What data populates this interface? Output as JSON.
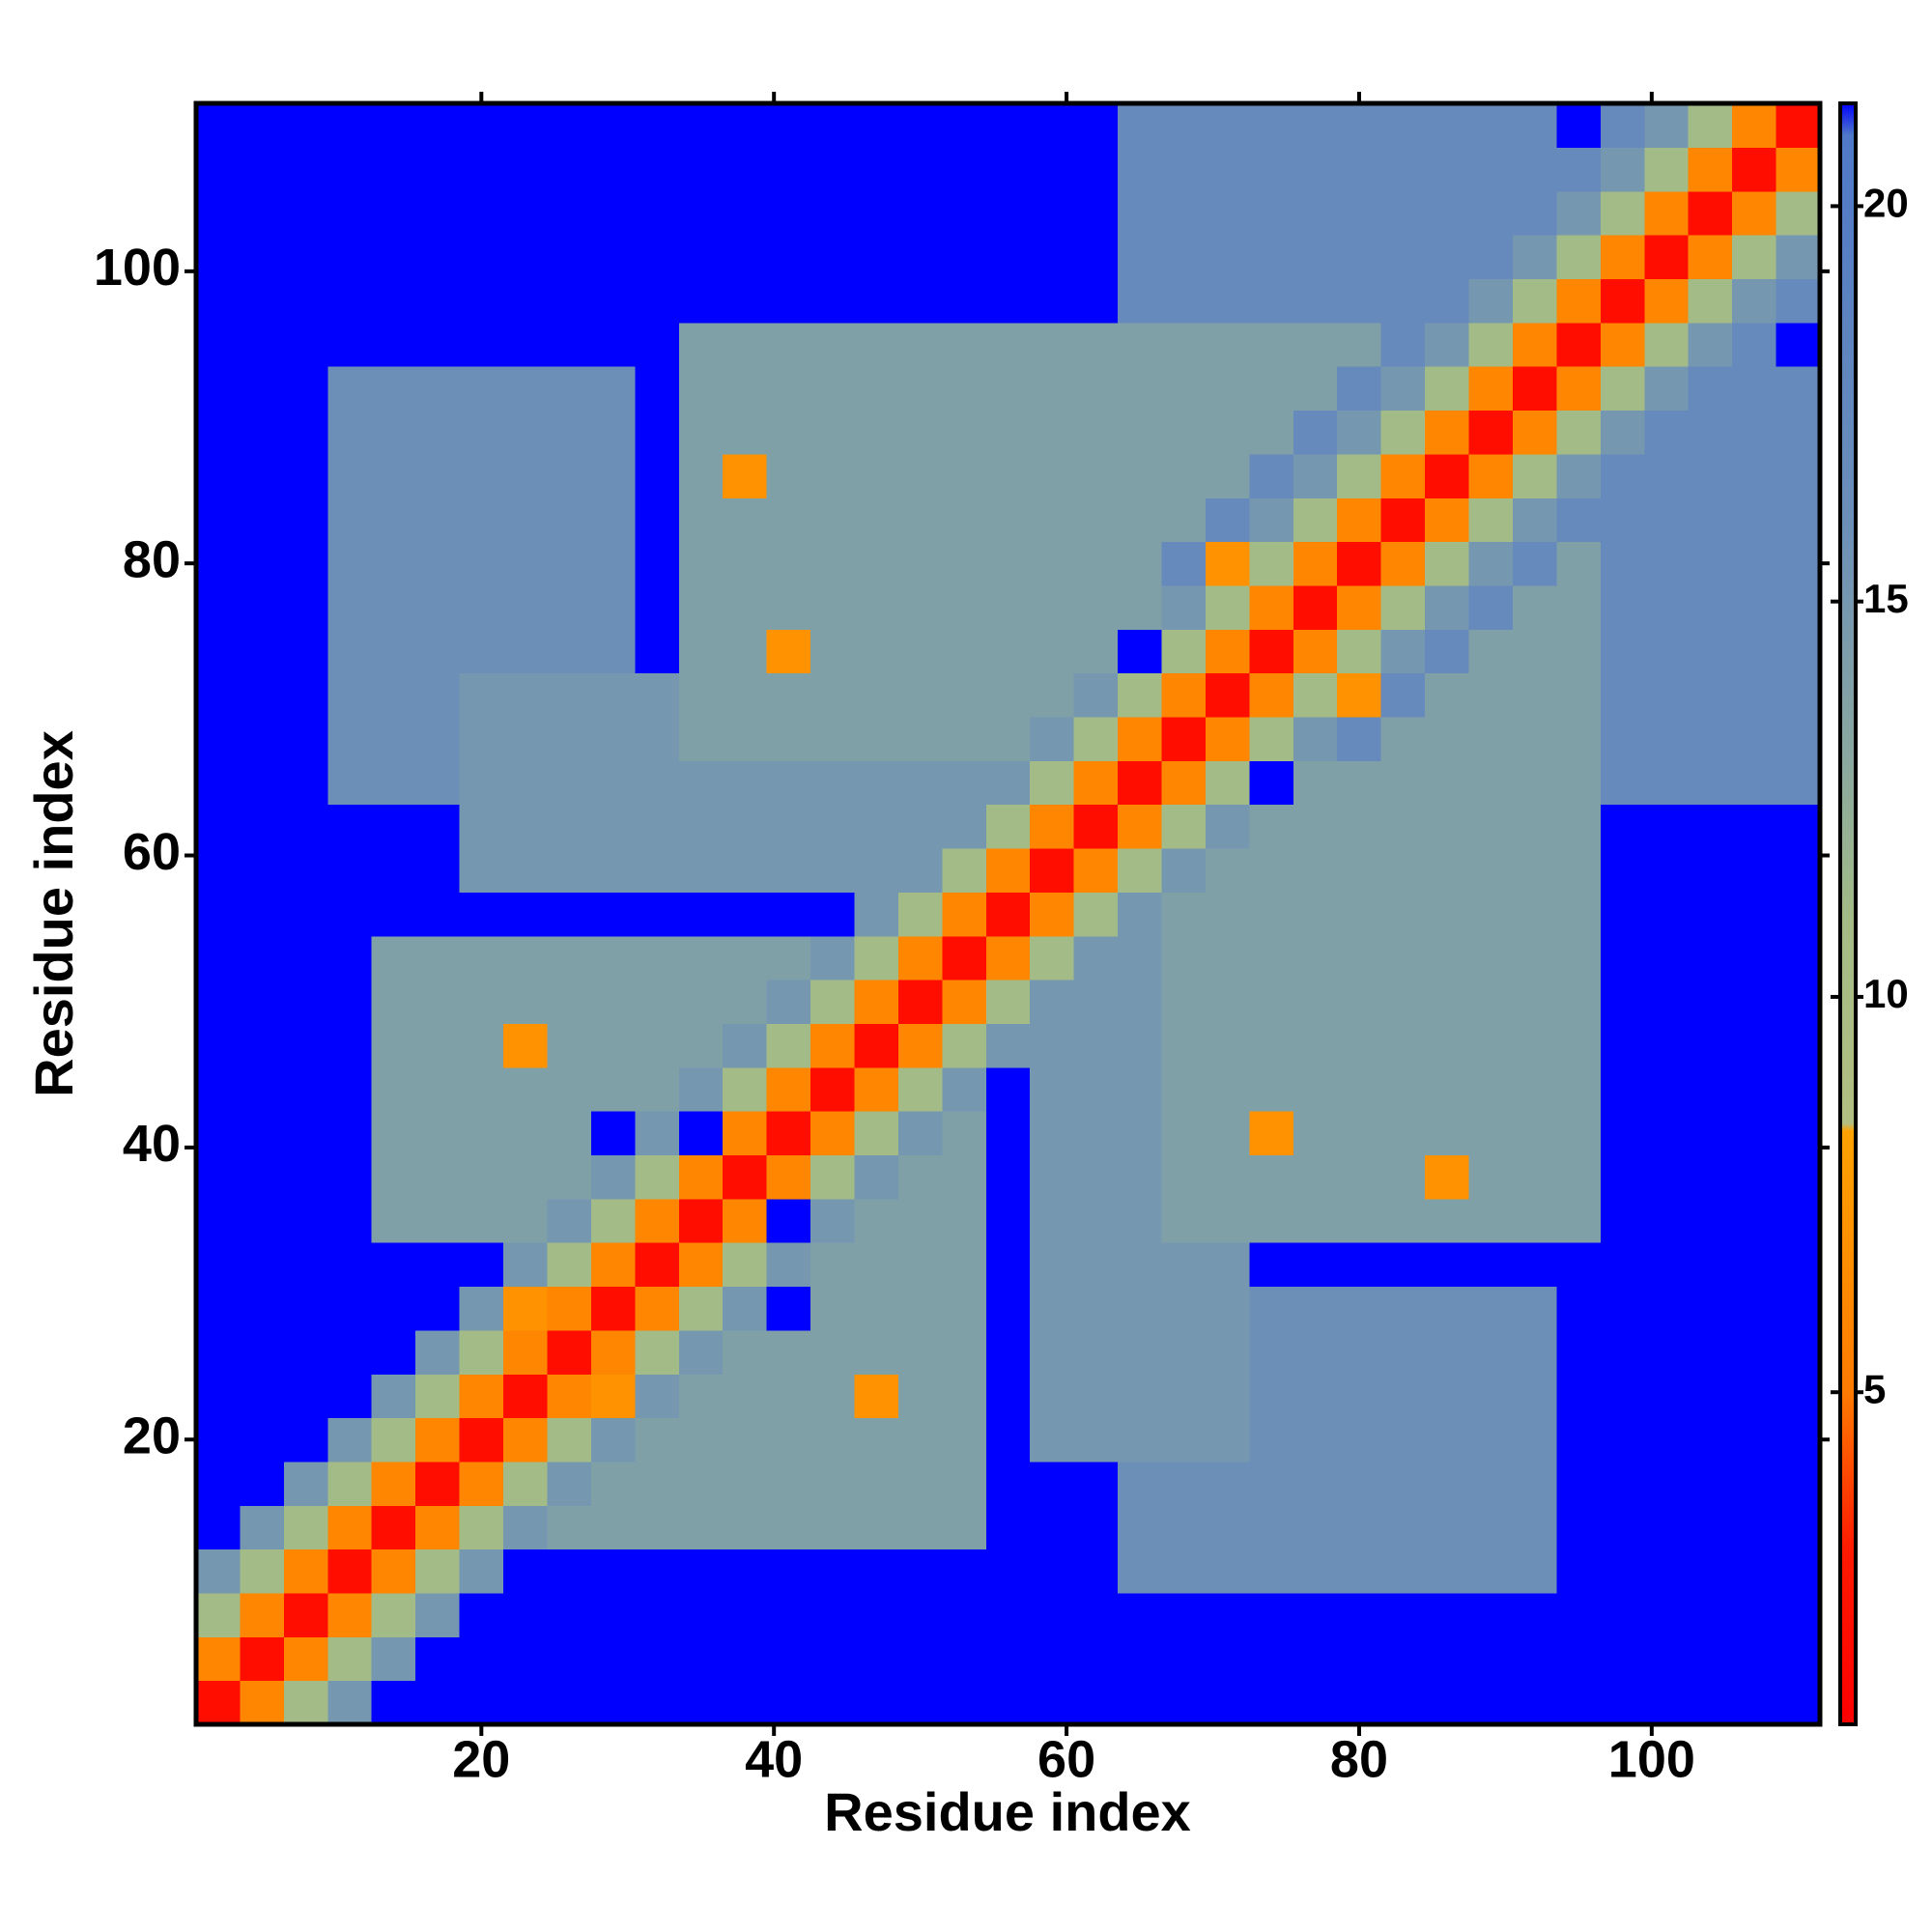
{
  "chart_data": {
    "type": "heatmap",
    "xlabel": "Residue index",
    "ylabel": "Residue index",
    "x": [
      2,
      5,
      8,
      11,
      14,
      17,
      20,
      23,
      26,
      29,
      32,
      35,
      38,
      41,
      44,
      47,
      50,
      53,
      56,
      59,
      62,
      65,
      68,
      71,
      74,
      77,
      80,
      83,
      86,
      89,
      92,
      95,
      98,
      101,
      104,
      107,
      110
    ],
    "y": [
      2,
      5,
      8,
      11,
      14,
      17,
      20,
      23,
      26,
      29,
      32,
      35,
      38,
      41,
      44,
      47,
      50,
      53,
      56,
      59,
      62,
      65,
      68,
      71,
      74,
      77,
      80,
      83,
      86,
      89,
      92,
      95,
      98,
      101,
      104,
      107,
      110
    ],
    "xlim": [
      0.5,
      111.5
    ],
    "ylim": [
      0.5,
      111.5
    ],
    "xticks": [
      20,
      40,
      60,
      80,
      100
    ],
    "yticks": [
      20,
      40,
      60,
      80,
      100
    ],
    "zlim": [
      0.8,
      21.3
    ],
    "zticks": [
      5,
      10,
      15,
      20
    ],
    "colorscale": [
      [
        0.8,
        "#ff0000"
      ],
      [
        3,
        "#ff1a00"
      ],
      [
        5,
        "#ff7a00"
      ],
      [
        8.3,
        "#ffa200"
      ],
      [
        8.4,
        "#b2bf82"
      ],
      [
        11,
        "#a3bb86"
      ],
      [
        13,
        "#8aa89f"
      ],
      [
        16,
        "#6c8fb8"
      ],
      [
        20.9,
        "#4f78c8"
      ],
      [
        21.3,
        "#0000ff"
      ]
    ],
    "z": [
      [
        2,
        6,
        11,
        15,
        22,
        22,
        22,
        22,
        22,
        22,
        22,
        22,
        22,
        22,
        22,
        22,
        22,
        22,
        22,
        22,
        22,
        22,
        22,
        22,
        22,
        22,
        22,
        22,
        22,
        22,
        22,
        22,
        22,
        22,
        22,
        22,
        22
      ],
      [
        6,
        2,
        6,
        11,
        15,
        22,
        22,
        22,
        22,
        22,
        22,
        22,
        22,
        22,
        22,
        22,
        22,
        22,
        22,
        22,
        22,
        22,
        22,
        22,
        22,
        22,
        22,
        22,
        22,
        22,
        22,
        22,
        22,
        22,
        22,
        22,
        22
      ],
      [
        11,
        6,
        2,
        6,
        11,
        15,
        22,
        22,
        22,
        22,
        22,
        22,
        22,
        22,
        22,
        22,
        22,
        22,
        22,
        22,
        22,
        22,
        22,
        22,
        22,
        22,
        22,
        22,
        22,
        22,
        22,
        22,
        22,
        22,
        22,
        22,
        22
      ],
      [
        15,
        11,
        6,
        2,
        6,
        11,
        15,
        22,
        22,
        22,
        22,
        22,
        22,
        22,
        22,
        22,
        22,
        22,
        22,
        22,
        22,
        16,
        16,
        16,
        16,
        16,
        16,
        16,
        16,
        16,
        16,
        22,
        22,
        22,
        22,
        22,
        22
      ],
      [
        22,
        15,
        11,
        6,
        2,
        6,
        11,
        15,
        14,
        14,
        14,
        14,
        14,
        14,
        14,
        14,
        14,
        14,
        22,
        22,
        22,
        16,
        16,
        16,
        16,
        16,
        16,
        16,
        16,
        16,
        16,
        22,
        22,
        22,
        22,
        22,
        22
      ],
      [
        22,
        22,
        15,
        11,
        6,
        2,
        6,
        11,
        15,
        14,
        14,
        14,
        14,
        14,
        14,
        14,
        14,
        14,
        22,
        22,
        22,
        16,
        16,
        16,
        16,
        16,
        16,
        16,
        16,
        16,
        16,
        22,
        22,
        22,
        22,
        22,
        22
      ],
      [
        22,
        22,
        22,
        15,
        11,
        6,
        2,
        6,
        11,
        15,
        14,
        14,
        14,
        14,
        14,
        14,
        14,
        14,
        22,
        15,
        15,
        15,
        15,
        15,
        16,
        16,
        16,
        16,
        16,
        16,
        16,
        22,
        22,
        22,
        22,
        22,
        22
      ],
      [
        22,
        22,
        22,
        22,
        15,
        11,
        6,
        2,
        6,
        7,
        15,
        14,
        14,
        14,
        14,
        7,
        14,
        14,
        22,
        15,
        15,
        15,
        15,
        15,
        16,
        16,
        16,
        16,
        16,
        16,
        16,
        22,
        22,
        22,
        22,
        22,
        22
      ],
      [
        22,
        22,
        22,
        22,
        22,
        15,
        11,
        6,
        2,
        6,
        11,
        15,
        14,
        14,
        14,
        14,
        14,
        14,
        22,
        15,
        15,
        15,
        15,
        15,
        16,
        16,
        16,
        16,
        16,
        16,
        16,
        22,
        22,
        22,
        22,
        22,
        22
      ],
      [
        22,
        22,
        22,
        22,
        22,
        22,
        15,
        7,
        6,
        2,
        6,
        11,
        15,
        22,
        14,
        14,
        14,
        14,
        22,
        15,
        15,
        15,
        15,
        15,
        16,
        16,
        16,
        16,
        16,
        16,
        16,
        22,
        22,
        22,
        22,
        22,
        22
      ],
      [
        22,
        22,
        22,
        22,
        22,
        22,
        22,
        15,
        11,
        6,
        2,
        6,
        11,
        15,
        14,
        14,
        14,
        14,
        22,
        15,
        15,
        15,
        15,
        15,
        22,
        22,
        22,
        22,
        22,
        22,
        22,
        22,
        22,
        22,
        22,
        22,
        22
      ],
      [
        22,
        22,
        22,
        22,
        14,
        14,
        14,
        14,
        15,
        11,
        6,
        2,
        6,
        22,
        15,
        14,
        14,
        14,
        22,
        15,
        15,
        15,
        14,
        14,
        14,
        14,
        14,
        14,
        14,
        14,
        14,
        14,
        22,
        22,
        22,
        22,
        22
      ],
      [
        22,
        22,
        22,
        22,
        14,
        14,
        14,
        14,
        14,
        15,
        11,
        6,
        2,
        6,
        11,
        15,
        14,
        14,
        22,
        15,
        15,
        15,
        14,
        14,
        14,
        14,
        14,
        14,
        7,
        14,
        14,
        14,
        22,
        22,
        22,
        22,
        22
      ],
      [
        22,
        22,
        22,
        22,
        14,
        14,
        14,
        14,
        14,
        22,
        15,
        22,
        6,
        2,
        6,
        11,
        15,
        14,
        22,
        15,
        15,
        15,
        14,
        14,
        7,
        14,
        14,
        14,
        14,
        14,
        14,
        14,
        22,
        22,
        22,
        22,
        22
      ],
      [
        22,
        22,
        22,
        22,
        14,
        14,
        14,
        14,
        14,
        14,
        14,
        15,
        11,
        6,
        2,
        6,
        11,
        15,
        22,
        15,
        15,
        15,
        14,
        14,
        14,
        14,
        14,
        14,
        14,
        14,
        14,
        14,
        22,
        22,
        22,
        22,
        22
      ],
      [
        22,
        22,
        22,
        22,
        14,
        14,
        14,
        7,
        14,
        14,
        14,
        14,
        15,
        11,
        6,
        2,
        6,
        11,
        15,
        15,
        15,
        15,
        14,
        14,
        14,
        14,
        14,
        14,
        14,
        14,
        14,
        14,
        22,
        22,
        22,
        22,
        22
      ],
      [
        22,
        22,
        22,
        22,
        14,
        14,
        14,
        14,
        14,
        14,
        14,
        14,
        14,
        15,
        11,
        6,
        2,
        6,
        11,
        15,
        15,
        15,
        14,
        14,
        14,
        14,
        14,
        14,
        14,
        14,
        14,
        14,
        22,
        22,
        22,
        22,
        22
      ],
      [
        22,
        22,
        22,
        22,
        14,
        14,
        14,
        14,
        14,
        14,
        14,
        14,
        14,
        14,
        15,
        11,
        6,
        2,
        6,
        11,
        15,
        15,
        14,
        14,
        14,
        14,
        14,
        14,
        14,
        14,
        14,
        14,
        22,
        22,
        22,
        22,
        22
      ],
      [
        22,
        22,
        22,
        22,
        22,
        22,
        22,
        22,
        22,
        22,
        22,
        22,
        22,
        22,
        22,
        15,
        11,
        6,
        2,
        6,
        11,
        15,
        14,
        14,
        14,
        14,
        14,
        14,
        14,
        14,
        14,
        14,
        22,
        22,
        22,
        22,
        22
      ],
      [
        22,
        22,
        22,
        22,
        22,
        22,
        15,
        15,
        15,
        15,
        15,
        15,
        15,
        15,
        15,
        15,
        15,
        11,
        6,
        2,
        6,
        11,
        15,
        14,
        14,
        14,
        14,
        14,
        14,
        14,
        14,
        14,
        22,
        22,
        22,
        22,
        22
      ],
      [
        22,
        22,
        22,
        22,
        22,
        22,
        15,
        15,
        15,
        15,
        15,
        15,
        15,
        15,
        15,
        15,
        15,
        15,
        11,
        6,
        2,
        6,
        11,
        15,
        14,
        14,
        14,
        14,
        14,
        14,
        14,
        14,
        22,
        22,
        22,
        22,
        22
      ],
      [
        22,
        22,
        22,
        16,
        16,
        16,
        15,
        15,
        15,
        15,
        15,
        15,
        15,
        15,
        15,
        15,
        15,
        15,
        15,
        11,
        6,
        2,
        6,
        11,
        22,
        14,
        14,
        14,
        14,
        14,
        14,
        14,
        17,
        17,
        17,
        17,
        17
      ],
      [
        22,
        22,
        22,
        16,
        16,
        16,
        15,
        15,
        15,
        15,
        15,
        14,
        14,
        14,
        14,
        14,
        14,
        14,
        14,
        15,
        11,
        6,
        2,
        6,
        11,
        15,
        17,
        14,
        14,
        14,
        14,
        14,
        17,
        17,
        17,
        17,
        17
      ],
      [
        22,
        22,
        22,
        16,
        16,
        16,
        15,
        15,
        15,
        15,
        15,
        14,
        14,
        14,
        14,
        14,
        14,
        14,
        14,
        14,
        15,
        11,
        6,
        2,
        6,
        11,
        7,
        17,
        14,
        14,
        14,
        14,
        17,
        17,
        17,
        17,
        17
      ],
      [
        22,
        22,
        22,
        16,
        16,
        16,
        16,
        16,
        16,
        16,
        22,
        14,
        14,
        7,
        14,
        14,
        14,
        14,
        14,
        14,
        14,
        22,
        11,
        6,
        2,
        6,
        11,
        15,
        17,
        14,
        14,
        14,
        17,
        17,
        17,
        17,
        17
      ],
      [
        22,
        22,
        22,
        16,
        16,
        16,
        16,
        16,
        16,
        16,
        22,
        14,
        14,
        14,
        14,
        14,
        14,
        14,
        14,
        14,
        14,
        14,
        15,
        11,
        6,
        2,
        6,
        11,
        15,
        17,
        14,
        14,
        17,
        17,
        17,
        17,
        17
      ],
      [
        22,
        22,
        22,
        16,
        16,
        16,
        16,
        16,
        16,
        16,
        22,
        14,
        14,
        14,
        14,
        14,
        14,
        14,
        14,
        14,
        14,
        14,
        17,
        7,
        11,
        6,
        2,
        6,
        11,
        15,
        17,
        14,
        17,
        17,
        17,
        17,
        17
      ],
      [
        22,
        22,
        22,
        16,
        16,
        16,
        16,
        16,
        16,
        16,
        22,
        14,
        14,
        14,
        14,
        14,
        14,
        14,
        14,
        14,
        14,
        14,
        14,
        17,
        15,
        11,
        6,
        2,
        6,
        11,
        15,
        17,
        17,
        17,
        17,
        17,
        17
      ],
      [
        22,
        22,
        22,
        16,
        16,
        16,
        16,
        16,
        16,
        16,
        22,
        14,
        7,
        14,
        14,
        14,
        14,
        14,
        14,
        14,
        14,
        14,
        14,
        14,
        17,
        15,
        11,
        6,
        2,
        6,
        11,
        15,
        17,
        17,
        17,
        17,
        17
      ],
      [
        22,
        22,
        22,
        16,
        16,
        16,
        16,
        16,
        16,
        16,
        22,
        14,
        14,
        14,
        14,
        14,
        14,
        14,
        14,
        14,
        14,
        14,
        14,
        14,
        14,
        17,
        15,
        11,
        6,
        2,
        6,
        11,
        15,
        17,
        17,
        17,
        17
      ],
      [
        22,
        22,
        22,
        16,
        16,
        16,
        16,
        16,
        16,
        16,
        22,
        14,
        14,
        14,
        14,
        14,
        14,
        14,
        14,
        14,
        14,
        14,
        14,
        14,
        14,
        14,
        17,
        15,
        11,
        6,
        2,
        6,
        11,
        15,
        17,
        17,
        17
      ],
      [
        22,
        22,
        22,
        22,
        22,
        22,
        22,
        22,
        22,
        22,
        22,
        14,
        14,
        14,
        14,
        14,
        14,
        14,
        14,
        14,
        14,
        14,
        14,
        14,
        14,
        14,
        14,
        17,
        15,
        11,
        6,
        2,
        6,
        11,
        15,
        17,
        22
      ],
      [
        22,
        22,
        22,
        22,
        22,
        22,
        22,
        22,
        22,
        22,
        22,
        22,
        22,
        22,
        22,
        22,
        22,
        22,
        22,
        22,
        22,
        17,
        17,
        17,
        17,
        17,
        17,
        17,
        17,
        15,
        11,
        6,
        2,
        6,
        11,
        15,
        17
      ],
      [
        22,
        22,
        22,
        22,
        22,
        22,
        22,
        22,
        22,
        22,
        22,
        22,
        22,
        22,
        22,
        22,
        22,
        22,
        22,
        22,
        22,
        17,
        17,
        17,
        17,
        17,
        17,
        17,
        17,
        17,
        15,
        11,
        6,
        2,
        6,
        11,
        15
      ],
      [
        22,
        22,
        22,
        22,
        22,
        22,
        22,
        22,
        22,
        22,
        22,
        22,
        22,
        22,
        22,
        22,
        22,
        22,
        22,
        22,
        22,
        17,
        17,
        17,
        17,
        17,
        17,
        17,
        17,
        17,
        17,
        15,
        11,
        6,
        2,
        6,
        11
      ],
      [
        22,
        22,
        22,
        22,
        22,
        22,
        22,
        22,
        22,
        22,
        22,
        22,
        22,
        22,
        22,
        22,
        22,
        22,
        22,
        22,
        22,
        17,
        17,
        17,
        17,
        17,
        17,
        17,
        17,
        17,
        17,
        17,
        15,
        11,
        6,
        2,
        6
      ],
      [
        22,
        22,
        22,
        22,
        22,
        22,
        22,
        22,
        22,
        22,
        22,
        22,
        22,
        22,
        22,
        22,
        22,
        22,
        22,
        22,
        22,
        17,
        17,
        17,
        17,
        17,
        17,
        17,
        17,
        17,
        17,
        22,
        17,
        15,
        11,
        6,
        2
      ]
    ]
  }
}
